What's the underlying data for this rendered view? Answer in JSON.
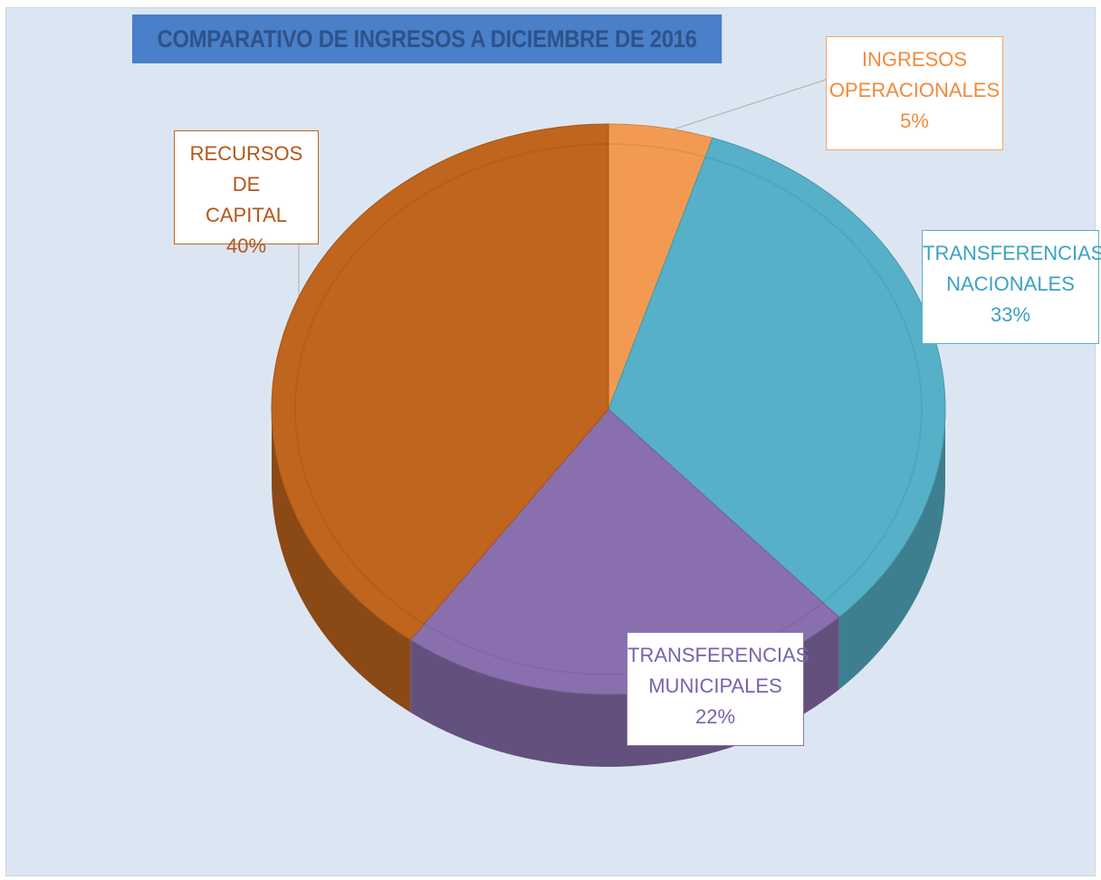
{
  "chart_data": {
    "type": "pie",
    "title": "COMPARATIVO DE INGRESOS A DICIEMBRE  DE 2016",
    "slices": [
      {
        "line1": "INGRESOS",
        "line2": "OPERACIONALES",
        "percent_label": "5%",
        "value": 5,
        "color": "#f39a52"
      },
      {
        "line1": "TRANSFERENCIAS",
        "line2": "NACIONALES",
        "percent_label": "33%",
        "value": 33,
        "color": "#56b0c7"
      },
      {
        "line1": "TRANSFERENCIAS",
        "line2": "MUNICIPALES",
        "percent_label": "22%",
        "value": 22,
        "color": "#8a6fae"
      },
      {
        "line1": "RECURSOS DE",
        "line2": "CAPITAL",
        "percent_label": "40%",
        "value": 40,
        "color": "#bf651d"
      }
    ],
    "start_angle": "12 o'clock",
    "direction": "clockwise",
    "style": "3d",
    "legend": "none"
  }
}
